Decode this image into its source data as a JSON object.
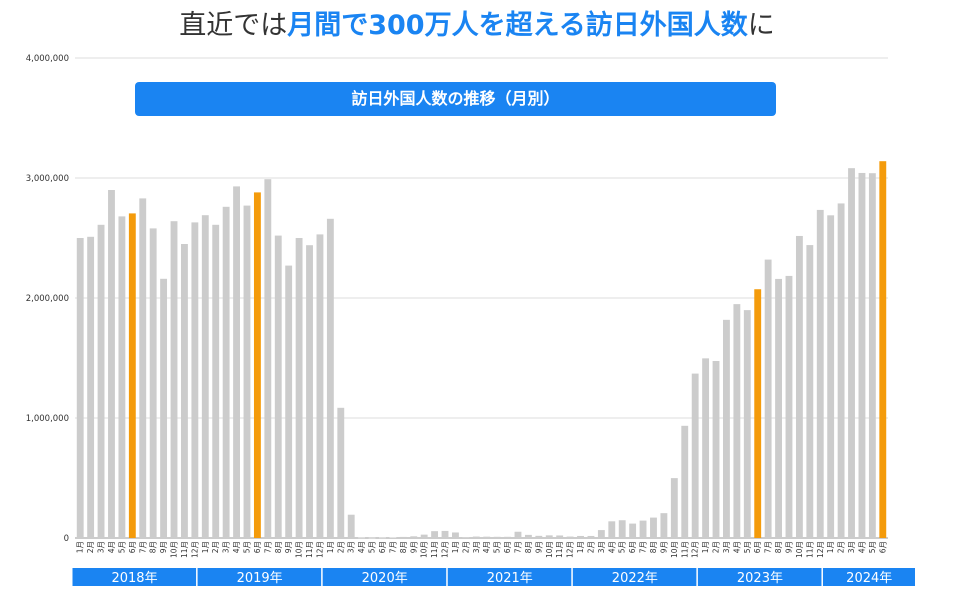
{
  "headline": {
    "pre": "直近では",
    "highlight": "月間で300万人を超える訪日外国人数",
    "post": "に"
  },
  "colors": {
    "bar": "#cccccc",
    "highlight_bar": "#f49b0b",
    "accent": "#1a84f2",
    "grid": "#dddddd",
    "axis_text": "#333333"
  },
  "chart_data": {
    "type": "bar",
    "title": "訪日外国人数の推移（月別）",
    "ylim": [
      0,
      4000000
    ],
    "y_ticks": [
      "0",
      "1,000,000",
      "2,000,000",
      "3,000,000",
      "4,000,000"
    ],
    "grid": true,
    "categories": [
      "1月",
      "2月",
      "3月",
      "4月",
      "5月",
      "6月",
      "7月",
      "8月",
      "9月",
      "10月",
      "11月",
      "12月",
      "1月",
      "2月",
      "3月",
      "4月",
      "5月",
      "6月",
      "7月",
      "8月",
      "9月",
      "10月",
      "11月",
      "12月",
      "1月",
      "2月",
      "3月",
      "4月",
      "5月",
      "6月",
      "7月",
      "8月",
      "9月",
      "10月",
      "11月",
      "12月",
      "1月",
      "2月",
      "3月",
      "4月",
      "5月",
      "6月",
      "7月",
      "8月",
      "9月",
      "10月",
      "11月",
      "12月",
      "1月",
      "2月",
      "3月",
      "4月",
      "5月",
      "6月",
      "7月",
      "8月",
      "9月",
      "10月",
      "11月",
      "12月",
      "1月",
      "2月",
      "3月",
      "4月",
      "5月",
      "6月",
      "7月",
      "8月",
      "9月",
      "10月",
      "11月",
      "12月",
      "1月",
      "2月",
      "3月",
      "4月",
      "5月",
      "6月"
    ],
    "years": [
      {
        "label": "2018年",
        "months": 12
      },
      {
        "label": "2019年",
        "months": 12
      },
      {
        "label": "2020年",
        "months": 12
      },
      {
        "label": "2021年",
        "months": 12
      },
      {
        "label": "2022年",
        "months": 12
      },
      {
        "label": "2023年",
        "months": 12
      },
      {
        "label": "2024年",
        "months": 6
      }
    ],
    "values": [
      2500000,
      2510000,
      2610000,
      2900000,
      2680000,
      2705000,
      2830000,
      2580000,
      2160000,
      2640000,
      2450000,
      2630000,
      2690000,
      2610000,
      2760000,
      2930000,
      2770000,
      2880000,
      2990000,
      2520000,
      2270000,
      2500000,
      2440000,
      2530000,
      2660000,
      1085000,
      194000,
      3000,
      2000,
      3000,
      4000,
      9000,
      14000,
      28000,
      57000,
      59000,
      46000,
      7000,
      12000,
      11000,
      10000,
      10000,
      52000,
      26000,
      18000,
      22000,
      21000,
      12000,
      17000,
      17000,
      66000,
      139000,
      148000,
      120000,
      145000,
      170000,
      207000,
      499000,
      935000,
      1370000,
      1497000,
      1475000,
      1818000,
      1949000,
      1899000,
      2073000,
      2320000,
      2159000,
      2184000,
      2517000,
      2441000,
      2734000,
      2689000,
      2788000,
      3082000,
      3042000,
      3040000,
      3140000
    ],
    "highlight_indices": [
      5,
      17,
      65,
      77
    ]
  }
}
